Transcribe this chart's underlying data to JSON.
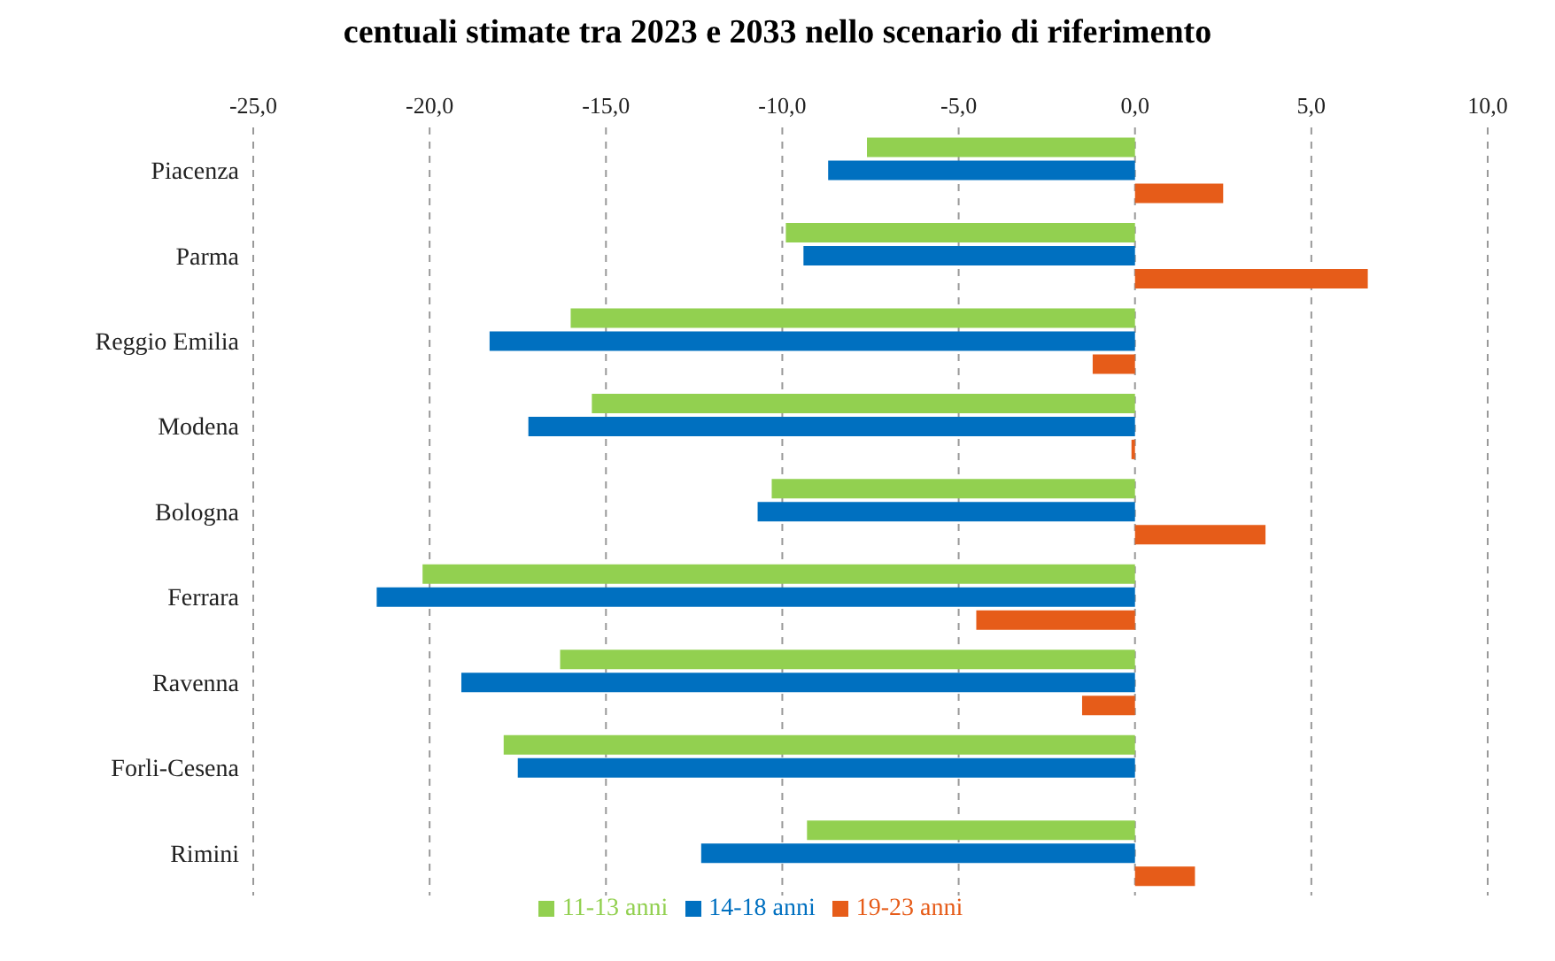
{
  "chart_data": {
    "type": "bar",
    "orientation": "horizontal",
    "title": "centuali stimate tra 2023 e 2033 nello scenario di riferimento",
    "categories": [
      "Piacenza",
      "Parma",
      "Reggio Emilia",
      "Modena",
      "Bologna",
      "Ferrara",
      "Ravenna",
      "Forli-Cesena",
      "Rimini"
    ],
    "series": [
      {
        "name": "11-13 anni",
        "color": "#92d050",
        "values": [
          -7.6,
          -9.9,
          -16.0,
          -15.4,
          -10.3,
          -20.2,
          -16.3,
          -17.9,
          -9.3
        ]
      },
      {
        "name": "14-18 anni",
        "color": "#0070c0",
        "values": [
          -8.7,
          -9.4,
          -18.3,
          -17.2,
          -10.7,
          -21.5,
          -19.1,
          -17.5,
          -12.3
        ]
      },
      {
        "name": "19-23 anni",
        "color": "#e65c19",
        "values": [
          2.5,
          6.6,
          -1.2,
          -0.1,
          3.7,
          -4.5,
          -1.5,
          0,
          1.7
        ]
      }
    ],
    "xlim": [
      -25,
      10
    ],
    "xticks": [
      {
        "value": -25,
        "label": "-25,0"
      },
      {
        "value": -20,
        "label": "-20,0"
      },
      {
        "value": -15,
        "label": "-15,0"
      },
      {
        "value": -10,
        "label": "-10,0"
      },
      {
        "value": -5,
        "label": "-5,0"
      },
      {
        "value": 0,
        "label": "0,0"
      },
      {
        "value": 5,
        "label": "5,0"
      },
      {
        "value": 10,
        "label": "10,0"
      }
    ],
    "grid": "x",
    "legend": "bottom"
  }
}
